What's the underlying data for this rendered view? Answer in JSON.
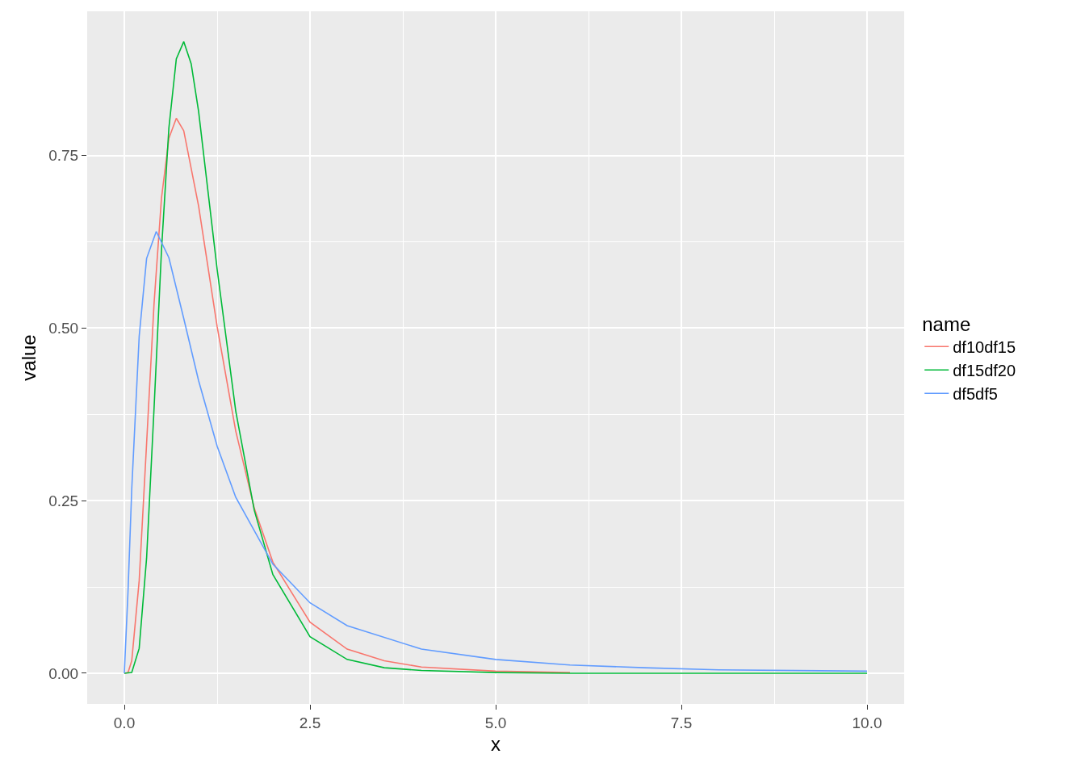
{
  "chart_data": {
    "type": "line",
    "xlabel": "x",
    "ylabel": "value",
    "legend_title": "name",
    "legend": "right",
    "grid": true,
    "marker": "none",
    "line_style": "solid",
    "xlim": [
      -0.5,
      10.5
    ],
    "xticks": [
      {
        "value": 0,
        "label": "0.0"
      },
      {
        "value": 2.5,
        "label": "2.5"
      },
      {
        "value": 5,
        "label": "5.0"
      },
      {
        "value": 7.5,
        "label": "7.5"
      },
      {
        "value": 10,
        "label": "10.0"
      }
    ],
    "ylim": [
      -0.0445,
      0.959
    ],
    "yticks": [
      {
        "value": 0,
        "label": "0.00"
      },
      {
        "value": 0.25,
        "label": "0.25"
      },
      {
        "value": 0.5,
        "label": "0.50"
      },
      {
        "value": 0.75,
        "label": "0.75"
      }
    ],
    "series": [
      {
        "name": "df10df15",
        "color": "#f8766d",
        "x": [
          0,
          0.05,
          0.1,
          0.2,
          0.3,
          0.4,
          0.5,
          0.6,
          0.7,
          0.8,
          1,
          1.25,
          1.5,
          1.75,
          2,
          2.5,
          3,
          3.5,
          4,
          5,
          6
        ],
        "values": [
          0,
          0.001,
          0.018,
          0.134,
          0.333,
          0.535,
          0.688,
          0.775,
          0.804,
          0.786,
          0.677,
          0.502,
          0.351,
          0.239,
          0.161,
          0.074,
          0.035,
          0.018,
          0.009,
          0.003,
          0.001
        ]
      },
      {
        "name": "df15df20",
        "color": "#00ba38",
        "x": [
          0,
          0.1,
          0.2,
          0.3,
          0.4,
          0.5,
          0.6,
          0.7,
          0.8,
          0.9,
          1,
          1.25,
          1.5,
          1.75,
          2,
          2.5,
          3,
          3.5,
          4,
          5,
          6,
          8,
          10
        ],
        "values": [
          0,
          0.001,
          0.036,
          0.167,
          0.383,
          0.612,
          0.79,
          0.89,
          0.915,
          0.883,
          0.814,
          0.585,
          0.38,
          0.236,
          0.143,
          0.053,
          0.02,
          0.008,
          0.004,
          0.001,
          0,
          0,
          0
        ]
      },
      {
        "name": "df5df5",
        "color": "#619cff",
        "x": [
          0,
          0.05,
          0.1,
          0.2,
          0.3,
          0.43,
          0.6,
          0.8,
          1,
          1.25,
          1.5,
          2,
          2.5,
          3,
          4,
          5,
          6,
          7,
          8,
          10
        ],
        "values": [
          0,
          0.119,
          0.267,
          0.488,
          0.601,
          0.64,
          0.602,
          0.514,
          0.424,
          0.329,
          0.255,
          0.158,
          0.102,
          0.069,
          0.035,
          0.02,
          0.012,
          0.008,
          0.005,
          0.003
        ]
      }
    ]
  }
}
